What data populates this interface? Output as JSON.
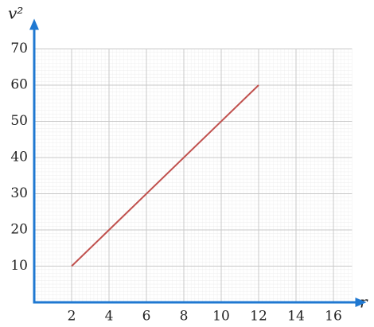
{
  "chart_data": {
    "type": "line",
    "x_label": "r",
    "y_label": "v²",
    "x": [
      2,
      12
    ],
    "series": [
      {
        "color": "#c0504d",
        "values": [
          10,
          60
        ]
      }
    ],
    "xlim": [
      0,
      17
    ],
    "ylim": [
      0,
      70
    ],
    "xticks": [
      2,
      4,
      6,
      8,
      10,
      12,
      14,
      16
    ],
    "yticks": [
      10,
      20,
      30,
      40,
      50,
      60,
      70
    ],
    "grid": true,
    "axis_color": "#1f78d1"
  }
}
